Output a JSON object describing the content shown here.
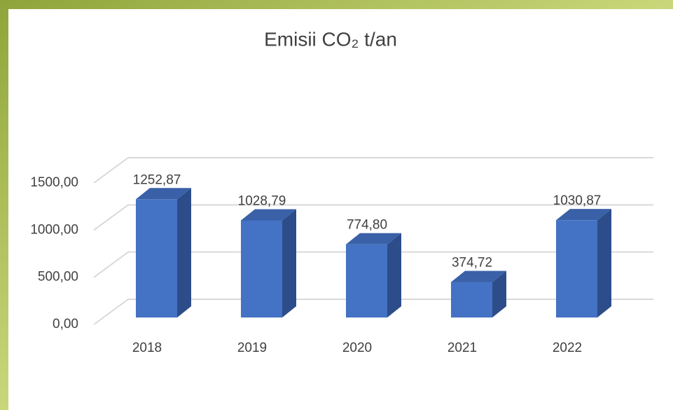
{
  "chart_data": {
    "type": "bar3d",
    "title": "Emisii CO₂ t/an",
    "categories": [
      "2018",
      "2019",
      "2020",
      "2021",
      "2022"
    ],
    "values": [
      1252.87,
      1028.79,
      774.8,
      374.72,
      1030.87
    ],
    "value_labels": [
      "1252,87",
      "1028,79",
      "774,80",
      "374,72",
      "1030,87"
    ],
    "color": "#4472c4",
    "ylim": [
      0,
      1500
    ],
    "yticks": [
      {
        "value": 0,
        "label": "0,00"
      },
      {
        "value": 500,
        "label": "500,00"
      },
      {
        "value": 1000,
        "label": "1000,00"
      },
      {
        "value": 1500,
        "label": "1500,00"
      }
    ],
    "grid": true
  }
}
